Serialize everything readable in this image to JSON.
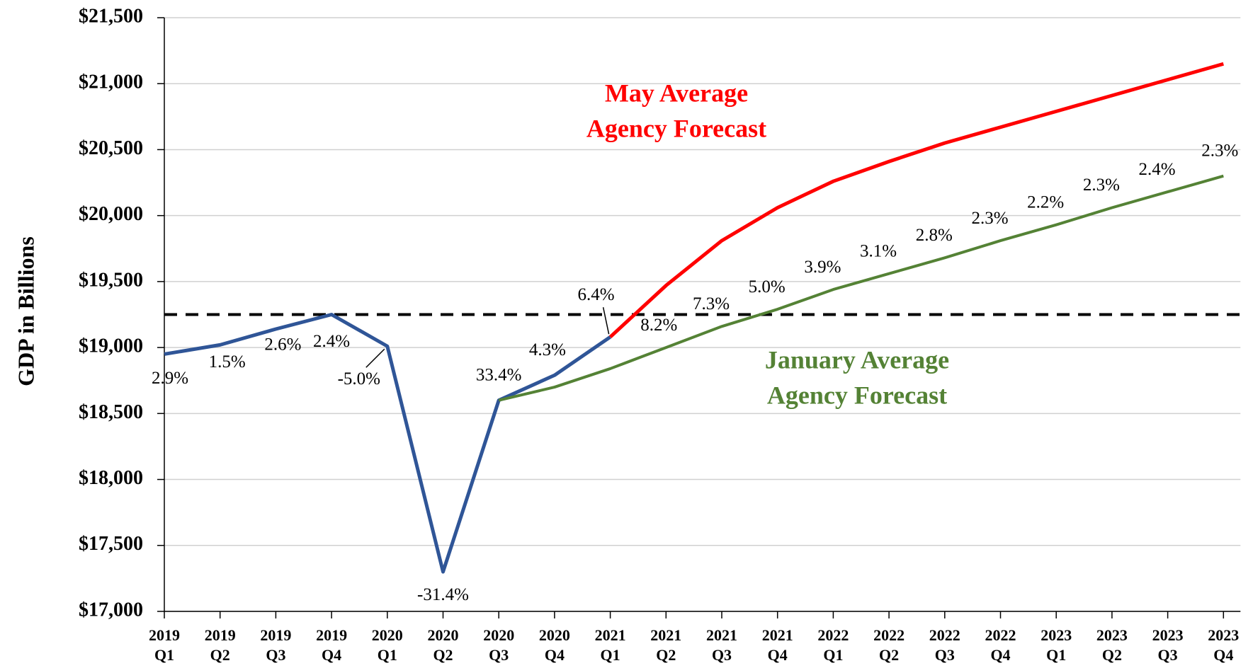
{
  "chart_data": {
    "type": "line",
    "y_label": "GDP in Billions",
    "categories": [
      [
        "2019",
        "Q1"
      ],
      [
        "2019",
        "Q2"
      ],
      [
        "2019",
        "Q3"
      ],
      [
        "2019",
        "Q4"
      ],
      [
        "2020",
        "Q1"
      ],
      [
        "2020",
        "Q2"
      ],
      [
        "2020",
        "Q3"
      ],
      [
        "2020",
        "Q4"
      ],
      [
        "2021",
        "Q1"
      ],
      [
        "2021",
        "Q2"
      ],
      [
        "2021",
        "Q3"
      ],
      [
        "2021",
        "Q4"
      ],
      [
        "2022",
        "Q1"
      ],
      [
        "2022",
        "Q2"
      ],
      [
        "2022",
        "Q3"
      ],
      [
        "2022",
        "Q4"
      ],
      [
        "2023",
        "Q1"
      ],
      [
        "2023",
        "Q2"
      ],
      [
        "2023",
        "Q3"
      ],
      [
        "2023",
        "Q4"
      ]
    ],
    "series": [
      {
        "color": "#2f5597",
        "values": [
          18950,
          19020,
          19140,
          19250,
          19010,
          17300,
          18600,
          18790,
          19080,
          null,
          null,
          null,
          null,
          null,
          null,
          null,
          null,
          null,
          null,
          null
        ]
      },
      {
        "color": "#548235",
        "values": [
          null,
          null,
          null,
          null,
          null,
          null,
          18600,
          18700,
          18840,
          19000,
          19160,
          19290,
          19440,
          19560,
          19680,
          19810,
          19930,
          20060,
          20180,
          20300
        ]
      },
      {
        "color": "#ff0000",
        "values": [
          null,
          null,
          null,
          null,
          null,
          null,
          null,
          null,
          19080,
          19470,
          19810,
          20060,
          20260,
          20410,
          20550,
          20670,
          20790,
          20910,
          21030,
          21150
        ]
      }
    ],
    "growth_labels": [
      "2.9%",
      "1.5%",
      "2.6%",
      "2.4%",
      "-5.0%",
      "-31.4%",
      "33.4%",
      "4.3%",
      "6.4%",
      "8.2%",
      "7.3%",
      "5.0%",
      "3.9%",
      "3.1%",
      "2.8%",
      "2.3%",
      "2.2%",
      "2.3%",
      "2.4%",
      "2.3%"
    ],
    "reference_line": 19250,
    "annotations": [
      {
        "lines": [
          "May Average",
          "Agency Forecast"
        ],
        "color": "#ff0000"
      },
      {
        "lines": [
          "January Average",
          "Agency Forecast"
        ],
        "color": "#548235"
      }
    ],
    "ylim": [
      17000,
      21500
    ],
    "yticks": [
      {
        "value": 17000,
        "label": "$17,000"
      },
      {
        "value": 17500,
        "label": "$17,500"
      },
      {
        "value": 18000,
        "label": "$18,000"
      },
      {
        "value": 18500,
        "label": "$18,500"
      },
      {
        "value": 19000,
        "label": "$19,000"
      },
      {
        "value": 19500,
        "label": "$19,500"
      },
      {
        "value": 20000,
        "label": "$20,000"
      },
      {
        "value": 20500,
        "label": "$20,500"
      },
      {
        "value": 21000,
        "label": "$21,000"
      },
      {
        "value": 21500,
        "label": "$21,500"
      }
    ],
    "grid": true
  }
}
